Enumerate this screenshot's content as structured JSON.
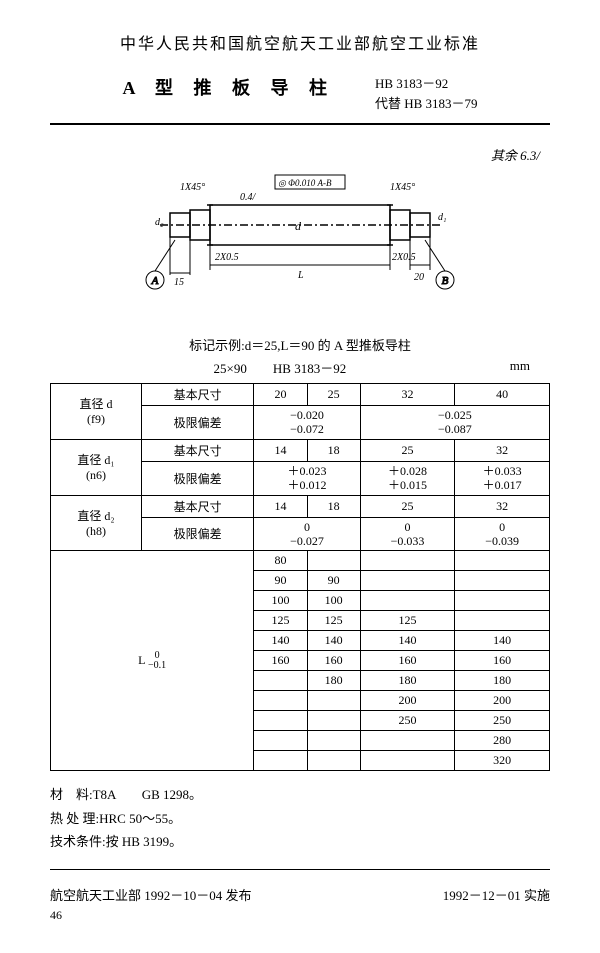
{
  "header": "中华人民共和国航空航天工业部航空工业标准",
  "title": "A 型 推 板 导 柱",
  "code1": "HB 3183－92",
  "code2": "代替 HB 3183－79",
  "note_handwrite": "其余 6.3/",
  "diagram": {
    "chamfer_l": "1X45°",
    "chamfer_r": "1X45°",
    "tol_box": "◎ Φ0.010 A-B",
    "ra1": "0.4/",
    "groove_l": "2X0.5",
    "groove_r": "2X0.5",
    "dim_15": "15",
    "dim_20": "20",
    "dim_L": "L",
    "datum_a": "A",
    "datum_b": "B",
    "d": "d",
    "d1": "d₂",
    "d2": "d₁"
  },
  "caption": "标记示例:d＝25,L＝90 的 A 型推板导柱",
  "code_line_l": "25×90",
  "code_line_r": "HB 3183－92",
  "unit": "mm",
  "row_labels": {
    "d": "直径 d",
    "d_tol": "(f9)",
    "d1": "直径 d₁",
    "d1_tol": "(n6)",
    "d2": "直径 d₂",
    "d2_tol": "(h8)",
    "L": "L",
    "L_tol_top": "0",
    "L_tol_bot": "−0.1",
    "basic": "基本尺寸",
    "limit": "极限偏差"
  },
  "d_basic": [
    "20",
    "25",
    "32",
    "40"
  ],
  "d_limit": [
    {
      "top": "−0.020",
      "bot": "−0.072"
    },
    {
      "top": "−0.025",
      "bot": "−0.087"
    }
  ],
  "d1_basic": [
    "14",
    "18",
    "25",
    "32"
  ],
  "d1_limit": [
    {
      "top": "＋0.023",
      "bot": "＋0.012"
    },
    {
      "top": "＋0.028",
      "bot": "＋0.015"
    },
    {
      "top": "＋0.033",
      "bot": "＋0.017"
    }
  ],
  "d2_basic": [
    "14",
    "18",
    "25",
    "32"
  ],
  "d2_limit": [
    {
      "top": "0",
      "bot": "−0.027"
    },
    {
      "top": "0",
      "bot": "−0.033"
    },
    {
      "top": "0",
      "bot": "−0.039"
    }
  ],
  "L_rows": [
    [
      "80",
      "",
      "",
      ""
    ],
    [
      "90",
      "90",
      "",
      ""
    ],
    [
      "100",
      "100",
      "",
      ""
    ],
    [
      "125",
      "125",
      "125",
      ""
    ],
    [
      "140",
      "140",
      "140",
      "140"
    ],
    [
      "160",
      "160",
      "160",
      "160"
    ],
    [
      "",
      "180",
      "180",
      "180"
    ],
    [
      "",
      "",
      "200",
      "200"
    ],
    [
      "",
      "",
      "250",
      "250"
    ],
    [
      "",
      "",
      "",
      "280"
    ],
    [
      "",
      "",
      "",
      "320"
    ]
  ],
  "notes": {
    "n1": "材　料:T8A　　GB 1298。",
    "n2": "热 处 理:HRC 50～55。",
    "n3": "技术条件:按 HB 3199。"
  },
  "footer_l": "航空航天工业部 1992－10－04 发布",
  "footer_r": "1992－12－01 实施",
  "page": "46"
}
